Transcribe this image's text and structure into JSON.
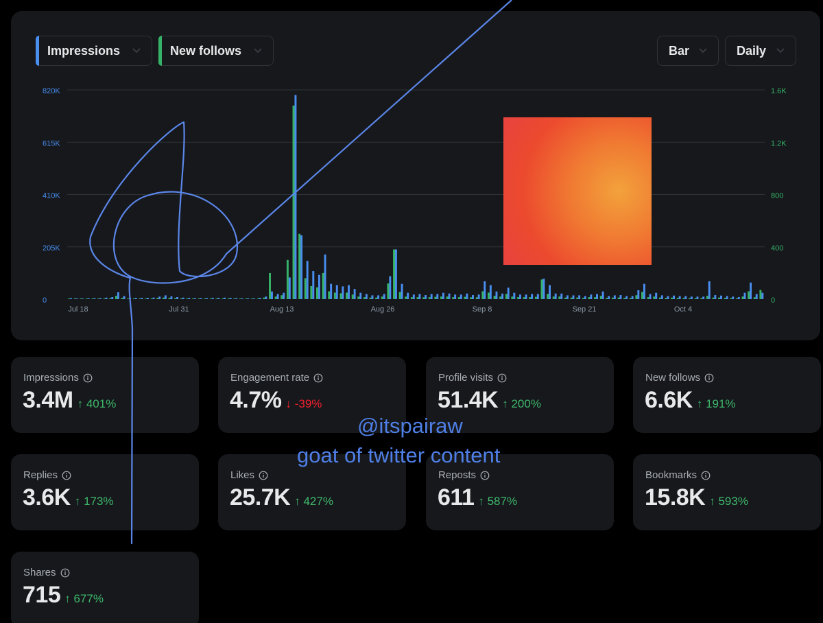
{
  "controls": {
    "metric_primary": {
      "label": "Impressions",
      "accent": "#4a8ef0"
    },
    "metric_secondary": {
      "label": "New follows",
      "accent": "#36b368"
    },
    "chart_type": "Bar",
    "interval": "Daily"
  },
  "chart_data": {
    "type": "bar",
    "x_tick_labels": [
      "Jul 18",
      "Jul 31",
      "Aug 13",
      "Aug 26",
      "Sep 8",
      "Sep 21",
      "Oct 4"
    ],
    "y_left_ticks": [
      "820K",
      "615K",
      "410K",
      "205K",
      "0"
    ],
    "y_right_ticks": [
      "1.6K",
      "1.2K",
      "800",
      "400",
      "0"
    ],
    "y_left_range": [
      0,
      820000
    ],
    "y_right_range": [
      0,
      1600
    ],
    "grid": true,
    "series": [
      {
        "name": "Impressions",
        "color": "#4a8ef0",
        "axis": "left",
        "values": [
          4000,
          3000,
          2500,
          3000,
          3500,
          4000,
          6000,
          8000,
          27000,
          12000,
          5000,
          5000,
          5000,
          5000,
          6000,
          10000,
          15000,
          11000,
          8000,
          6000,
          5000,
          4000,
          4000,
          4000,
          5000,
          5000,
          6000,
          5000,
          4000,
          3000,
          3000,
          3000,
          5000,
          10000,
          30000,
          20000,
          25000,
          85000,
          800000,
          250000,
          150000,
          110000,
          95000,
          175000,
          60000,
          55000,
          50000,
          55000,
          40000,
          25000,
          20000,
          15000,
          15000,
          20000,
          90000,
          195000,
          60000,
          25000,
          18000,
          20000,
          16000,
          20000,
          20000,
          25000,
          22000,
          18000,
          18000,
          22000,
          16000,
          18000,
          70000,
          55000,
          30000,
          22000,
          45000,
          25000,
          18000,
          18000,
          20000,
          20000,
          80000,
          55000,
          22000,
          22000,
          15000,
          15000,
          15000,
          12000,
          18000,
          20000,
          30000,
          12000,
          15000,
          16000,
          12000,
          12000,
          35000,
          60000,
          20000,
          25000,
          15000,
          12000,
          14000,
          12000,
          12000,
          10000,
          10000,
          10000,
          70000,
          16000,
          14000,
          12000,
          10000,
          8000,
          25000,
          65000,
          20000,
          25000
        ]
      },
      {
        "name": "New follows",
        "color": "#36b368",
        "axis": "right",
        "values": [
          4,
          3,
          2,
          3,
          3,
          4,
          6,
          8,
          25,
          10,
          5,
          5,
          5,
          5,
          6,
          10,
          12,
          10,
          8,
          6,
          5,
          4,
          4,
          4,
          5,
          5,
          5,
          5,
          4,
          3,
          3,
          3,
          5,
          12,
          200,
          20,
          30,
          300,
          1480,
          500,
          160,
          100,
          90,
          200,
          60,
          50,
          45,
          50,
          35,
          20,
          15,
          12,
          12,
          20,
          120,
          380,
          55,
          20,
          15,
          15,
          14,
          15,
          18,
          20,
          20,
          15,
          15,
          18,
          14,
          14,
          60,
          50,
          25,
          20,
          40,
          20,
          15,
          15,
          15,
          18,
          150,
          40,
          20,
          20,
          12,
          12,
          12,
          10,
          15,
          15,
          25,
          10,
          12,
          12,
          10,
          10,
          30,
          55,
          15,
          20,
          12,
          10,
          12,
          10,
          10,
          8,
          8,
          8,
          25,
          12,
          12,
          10,
          8,
          7,
          20,
          60,
          15,
          70
        ]
      }
    ]
  },
  "stats": [
    {
      "label": "Impressions",
      "value": "3.4M",
      "change": "401%",
      "direction": "up"
    },
    {
      "label": "Engagement rate",
      "value": "4.7%",
      "change": "-39%",
      "direction": "down"
    },
    {
      "label": "Profile visits",
      "value": "51.4K",
      "change": "200%",
      "direction": "up"
    },
    {
      "label": "New follows",
      "value": "6.6K",
      "change": "191%",
      "direction": "up"
    },
    {
      "label": "Replies",
      "value": "3.6K",
      "change": "173%",
      "direction": "up"
    },
    {
      "label": "Likes",
      "value": "25.7K",
      "change": "427%",
      "direction": "up"
    },
    {
      "label": "Reposts",
      "value": "611",
      "change": "587%",
      "direction": "up"
    },
    {
      "label": "Bookmarks",
      "value": "15.8K",
      "change": "593%",
      "direction": "up"
    },
    {
      "label": "Shares",
      "value": "715",
      "change": "677%",
      "direction": "up"
    }
  ],
  "overlay": {
    "handle": "@itspairaw",
    "tagline": "goat of twitter content",
    "ink_color": "#4f7fe6"
  },
  "icons": {
    "dropdown": "chevron-down-icon",
    "info": "info-circle-icon",
    "up": "arrow-up-icon",
    "down": "arrow-down-icon"
  }
}
